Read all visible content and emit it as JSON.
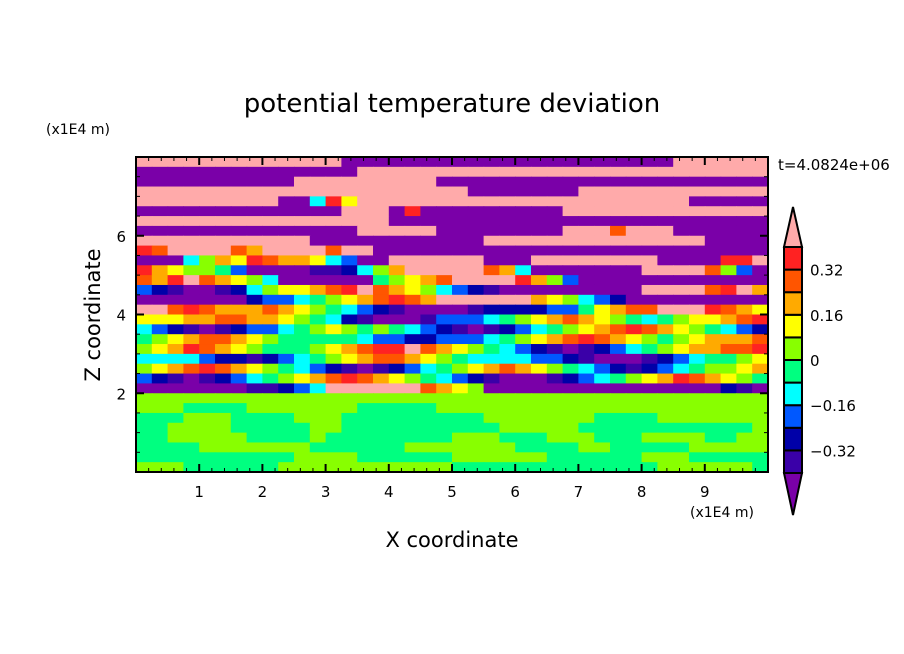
{
  "chart_data": {
    "type": "heatmap",
    "title": "potential temperature deviation",
    "xlabel": "X coordinate",
    "ylabel": "Z coordinate",
    "x_unit": "(x1E4 m)",
    "y_unit": "(x1E4 m)",
    "time_label": "t=4.0824e+06",
    "xlim": [
      0,
      10
    ],
    "ylim": [
      0,
      8
    ],
    "x_ticks": [
      1,
      2,
      3,
      4,
      5,
      6,
      7,
      8,
      9
    ],
    "x_tick_labels": [
      "1",
      "2",
      "3",
      "4",
      "5",
      "6",
      "7",
      "8",
      "9"
    ],
    "y_ticks": [
      2,
      4,
      6
    ],
    "y_tick_labels": [
      "2",
      "4",
      "6"
    ],
    "colorbar": {
      "levels": [
        -0.4,
        -0.32,
        -0.24,
        -0.16,
        -0.08,
        0,
        0.08,
        0.16,
        0.24,
        0.32,
        0.4
      ],
      "colors": [
        "#7a00a8",
        "#3a00a8",
        "#0000a8",
        "#0058ff",
        "#00ffff",
        "#00ff80",
        "#88ff00",
        "#ffff00",
        "#ffaa00",
        "#ff5500",
        "#ff2222",
        "#ffaaaa"
      ],
      "tick_values": [
        0.32,
        0.16,
        0,
        -0.16,
        -0.32
      ],
      "tick_labels": [
        "0.32",
        "0.16",
        "0",
        "−0.16",
        "−0.32"
      ],
      "extend": "both"
    },
    "grid_note": "rows from top (z=8) to bottom (z=0), each char is a level index 0-B into colorbar.colors",
    "rows": [
      "BBBBBBBBBBBBB000000000000000000000BBBBBB",
      "00000000000000BBBBBBBBBBBBBBBBBBBBBBBBBB",
      "0000000000BBBBBBBBB000000000000000000000",
      "BBBBBBBBBBBBBBBBBBBBB0000000BBBBBBBBBBBB",
      "BBBBBBBBB004A7BBBBBBBBBBBBBBBBBBBBB00000",
      "0000000000000BBB0A000000000BBBBBBBBBBBBB",
      "BBBBBBBBBBBBBBBB000000000000000000000000",
      "00000000000000BBBBB00000000BBB9BBB000000",
      "BBBBBBBBBBB00000000000BBBBBBBBBBBBBB0000",
      "A9BBBB98BBBB9BB0000000000000000000000000",
      "0004687A98874300BBBBBB000BBBBBBBB0000AAB",
      "A8766530000112468BBBBB9840000000BBBB9630",
      "98AB9876400000056789BBBBA863000000000000",
      "3210012467789AB98764321000000000BBBB9AB8",
      "0000000233456789A98BBBBBB876432000000000",
      "BB9A98889876543210000122223357899BBBA987",
      "777889988765421000133345678987654567789A",
      "4321012334567656543210123456789A98765432",
      "5678998765555543322333456789A98765678889",
      "678A98765556789AAB987654321012345678899A",
      "4444322123456789987654444332100012345567",
      "6789A98765432101234567898765432123456678",
      "3210123456789A98765432100012345678A98765",
      "000000011234BBBBBB9876000000000000000210",
      "6666666666666666666666666666666666666666",
      "6665555666666655555666666666666666666666",
      "5556665555666555555555666666655556666666",
      "5566665555566555555555566666555555555556",
      "5566666555565555555566655566655566665566",
      "5555666666655555566666665555665555566666",
      "5555555555666655555566666655555566655555",
      "6665555556666666666655555555555556666665"
    ]
  }
}
